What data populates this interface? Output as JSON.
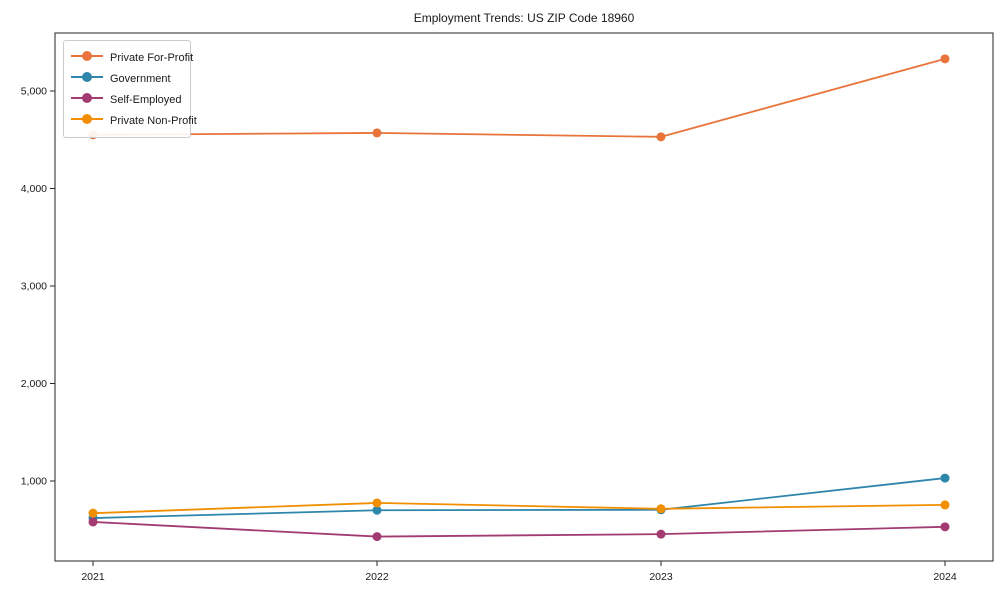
{
  "chart_data": {
    "type": "line",
    "title": "Employment Trends: US ZIP Code 18960",
    "xlabel": "",
    "ylabel": "",
    "x": [
      "2021",
      "2022",
      "2023",
      "2024"
    ],
    "series": [
      {
        "name": "Private For-Profit",
        "color": "#E8743B",
        "values": [
          4550,
          4570,
          4530,
          5330
        ]
      },
      {
        "name": "Government",
        "color": "#2E86AB",
        "values": [
          620,
          700,
          705,
          1030
        ]
      },
      {
        "name": "Self-Employed",
        "color": "#A23B72",
        "values": [
          580,
          430,
          455,
          530
        ]
      },
      {
        "name": "Private Non-Profit",
        "color": "#F18F01",
        "values": [
          670,
          775,
          715,
          755
        ]
      }
    ],
    "y_axis": {
      "ticks": [
        1000,
        2000,
        3000,
        4000,
        5000
      ],
      "ylim": [
        180,
        5595
      ],
      "tick_format": "thousands-comma"
    },
    "legend_position": "upper left",
    "grid": false,
    "text_color": "#1a1a1a",
    "spine_color": "#262626",
    "background_color": "#ffffff"
  }
}
